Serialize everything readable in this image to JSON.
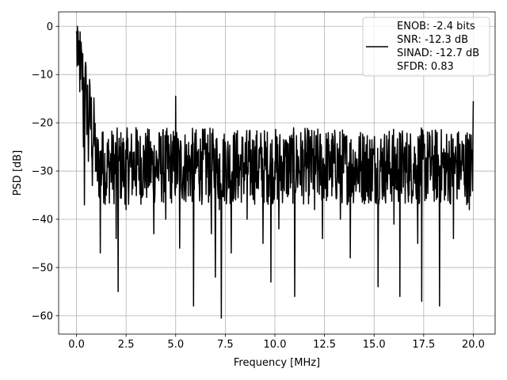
{
  "chart_data": {
    "type": "line",
    "title": "",
    "xlabel": "Frequency [MHz]",
    "ylabel": "PSD [dB]",
    "xlim": [
      -0.9,
      21.1
    ],
    "ylim": [
      -63.8,
      3.0
    ],
    "x_ticks": [
      0.0,
      2.5,
      5.0,
      7.5,
      10.0,
      12.5,
      15.0,
      17.5,
      20.0
    ],
    "x_tick_labels": [
      "0.0",
      "2.5",
      "5.0",
      "7.5",
      "10.0",
      "12.5",
      "15.0",
      "17.5",
      "20.0"
    ],
    "y_ticks": [
      0,
      -10,
      -20,
      -30,
      -40,
      -50,
      -60
    ],
    "y_tick_labels": [
      "0",
      "−10",
      "−20",
      "−30",
      "−40",
      "−50",
      "−60"
    ],
    "grid": true,
    "legend_position": "top-right",
    "line_color": "#000000",
    "legend_lines": [
      "ENOB: -2.4 bits",
      "SNR: -12.3 dB",
      "SINAD: -12.7 dB",
      "SFDR: 0.83"
    ],
    "series": [
      {
        "x": [
          0.0,
          0.05,
          0.1,
          0.15,
          0.2,
          0.25,
          0.3,
          0.35,
          0.4,
          0.5,
          0.6,
          0.7,
          0.8,
          0.9,
          1.0,
          1.2,
          1.3,
          1.5,
          1.8,
          2.0,
          2.1,
          2.2,
          2.5,
          3.0,
          3.5,
          3.9,
          4.2,
          4.5,
          4.9,
          5.0,
          5.05,
          5.2,
          5.6,
          5.9,
          6.3,
          6.8,
          7.0,
          7.2,
          7.3,
          7.5,
          7.8,
          8.2,
          8.6,
          9.0,
          9.4,
          9.8,
          10.0,
          10.2,
          10.6,
          11.0,
          11.5,
          12.0,
          12.4,
          12.8,
          13.3,
          13.8,
          14.3,
          14.8,
          15.2,
          15.6,
          16.0,
          16.3,
          16.8,
          17.2,
          17.4,
          17.8,
          18.3,
          18.6,
          19.0,
          19.4,
          19.8,
          20.0
        ],
        "y": [
          -1.0,
          0.0,
          -8.0,
          -3.0,
          -11.0,
          -5.0,
          -12.0,
          -25.0,
          -37.0,
          -15.0,
          -28.0,
          -18.0,
          -33.0,
          -20.0,
          -30.0,
          -47.0,
          -22.0,
          -35.0,
          -26.0,
          -44.0,
          -55.0,
          -25.0,
          -38.0,
          -21.0,
          -32.0,
          -43.0,
          -24.0,
          -40.0,
          -30.0,
          -14.5,
          -22.0,
          -46.0,
          -32.0,
          -58.0,
          -26.0,
          -43.0,
          -52.0,
          -38.0,
          -60.5,
          -24.0,
          -47.0,
          -33.0,
          -40.0,
          -27.0,
          -45.0,
          -53.0,
          -28.0,
          -42.0,
          -31.0,
          -56.0,
          -29.0,
          -38.0,
          -44.0,
          -26.0,
          -40.0,
          -48.0,
          -30.0,
          -36.0,
          -54.0,
          -28.0,
          -41.0,
          -56.0,
          -32.0,
          -45.0,
          -57.0,
          -27.0,
          -58.0,
          -35.0,
          -44.0,
          -29.0,
          -38.0,
          -15.5
        ]
      }
    ]
  }
}
